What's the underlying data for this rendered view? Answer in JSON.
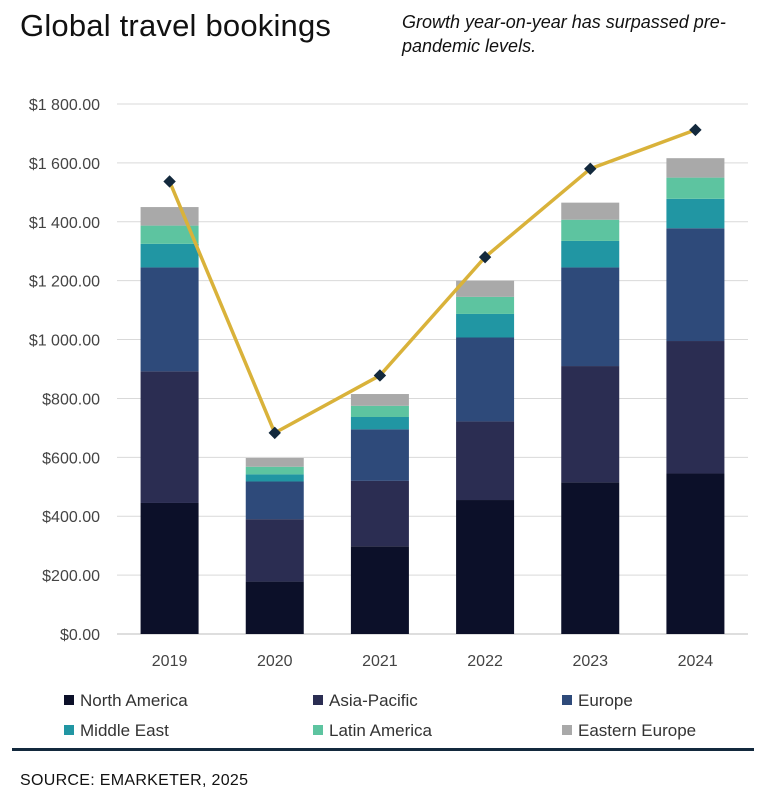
{
  "header": {
    "title": "Global travel bookings",
    "subtitle": "Growth year-on-year has surpassed pre-pandemic levels."
  },
  "footer": {
    "source": "SOURCE: EMARKETER, 2025"
  },
  "chart_data": {
    "type": "bar",
    "stacked": true,
    "categories": [
      "2019",
      "2020",
      "2021",
      "2022",
      "2023",
      "2024"
    ],
    "series": [
      {
        "name": "North America",
        "color": "#0c1029",
        "values": [
          445,
          178,
          298,
          455,
          515,
          545
        ]
      },
      {
        "name": "Asia-Pacific",
        "color": "#2b2d52",
        "values": [
          447,
          212,
          222,
          267,
          395,
          450
        ]
      },
      {
        "name": "Europe",
        "color": "#2e4a7a",
        "values": [
          353,
          128,
          175,
          285,
          335,
          383
        ]
      },
      {
        "name": "Middle East",
        "color": "#2196a3",
        "values": [
          80,
          24,
          42,
          80,
          90,
          100
        ]
      },
      {
        "name": "Latin America",
        "color": "#5dc4a0",
        "values": [
          62,
          26,
          38,
          58,
          72,
          72
        ]
      },
      {
        "name": "Eastern Europe",
        "color": "#a9a9a9",
        "values": [
          63,
          30,
          40,
          55,
          58,
          66
        ]
      }
    ],
    "line": {
      "color": "#d9b23a",
      "marker_color": "#13293d",
      "values": [
        1537,
        683,
        878,
        1280,
        1580,
        1712
      ]
    },
    "ylim": [
      0,
      1800
    ],
    "yticks": [
      0,
      200,
      400,
      600,
      800,
      1000,
      1200,
      1400,
      1600,
      1800
    ],
    "ytick_labels": [
      "$0.00",
      "$200.00",
      "$400.00",
      "$600.00",
      "$800.00",
      "$1 000.00",
      "$1 200.00",
      "$1 400.00",
      "$1 600.00",
      "$1 800.00"
    ],
    "xlabel": "",
    "ylabel": "",
    "grid": true,
    "legend_position": "bottom"
  }
}
